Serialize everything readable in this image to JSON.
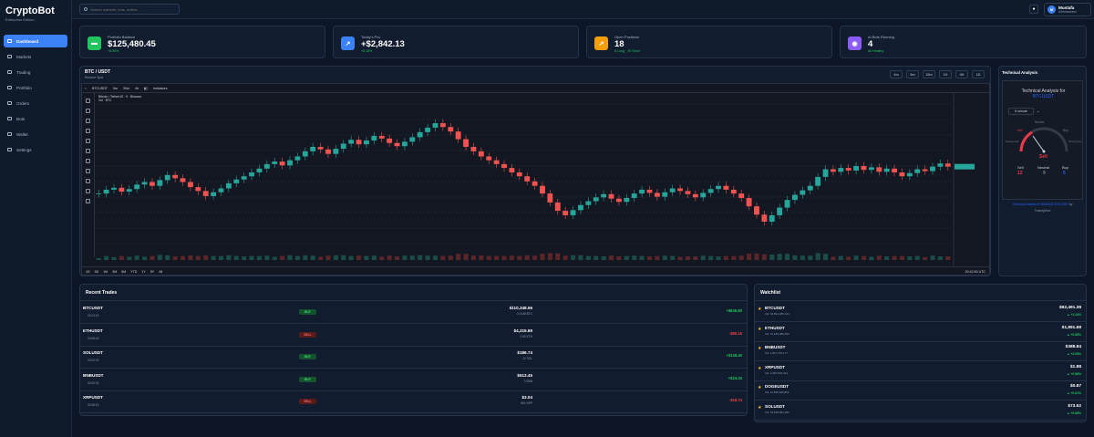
{
  "app": {
    "title": "CryptoBot",
    "subtitle": "Enterprise Edition"
  },
  "sidebar": {
    "items": [
      {
        "label": "Dashboard",
        "active": true
      },
      {
        "label": "Markets"
      },
      {
        "label": "Trading"
      },
      {
        "label": "Portfolio"
      },
      {
        "label": "Orders"
      },
      {
        "label": "Bots"
      },
      {
        "label": "Wallet"
      },
      {
        "label": "Settings"
      }
    ]
  },
  "topbar": {
    "search_placeholder": "Search markets, bots, orders...",
    "user_name": "Mustafa",
    "user_role": "Administrator",
    "avatar_initial": "M"
  },
  "stats": [
    {
      "label": "Portfolio Balance",
      "value": "$125,480.45",
      "sub": "+8.50%",
      "color": "#22c55e",
      "icon": "wallet-icon"
    },
    {
      "label": "Today's PnL",
      "value": "+$2,842.13",
      "sub": "+5.18%",
      "color": "#3b82f6",
      "icon": "chart-up-icon"
    },
    {
      "label": "Open Positions",
      "value": "18",
      "sub": "8 Long · 10 Short",
      "color": "#f59e0b",
      "icon": "positions-icon"
    },
    {
      "label": "AI Bots Running",
      "value": "4",
      "sub": "All Healthy",
      "color": "#8b5cf6",
      "icon": "robot-icon"
    }
  ],
  "chart_panel": {
    "pair": "BTC / USDT",
    "exchange": "Binance Spot",
    "timeframes": [
      "1m",
      "5m",
      "15m",
      "1H",
      "4H",
      "1D"
    ],
    "tv": {
      "symbol": "BTCUSDT",
      "intervals": [
        "5m",
        "30m",
        "4h"
      ],
      "indicators_label": "Indicators",
      "legend": "Bitcoin / TetherUS · 5 · Binance",
      "vol_label": "Vol · BTC",
      "ranges": [
        "1D",
        "5D",
        "1M",
        "3M",
        "6M",
        "YTD",
        "1Y",
        "5Y",
        "All"
      ],
      "time": "20:42:50 UTC"
    }
  },
  "chart_data": {
    "type": "candlestick",
    "title": "Bitcoin / TetherUS · 5 · Binance",
    "series": [
      {
        "name": "BTCUSDT",
        "close": [
          100.2,
          100.8,
          101.1,
          100.5,
          100.9,
          101.6,
          102.0,
          101.4,
          102.3,
          103.1,
          102.6,
          102.0,
          101.2,
          100.6,
          99.8,
          100.4,
          101.0,
          101.8,
          102.4,
          102.9,
          103.5,
          104.1,
          104.8,
          105.2,
          104.6,
          105.4,
          106.0,
          106.8,
          107.5,
          107.1,
          106.4,
          107.2,
          108.0,
          108.6,
          107.9,
          108.5,
          109.2,
          108.8,
          108.1,
          107.6,
          108.3,
          109.0,
          109.8,
          110.5,
          111.2,
          110.6,
          109.9,
          108.7,
          107.5,
          106.8,
          106.0,
          105.4,
          104.8,
          104.2,
          103.5,
          102.9,
          102.1,
          101.4,
          100.2,
          98.8,
          97.5,
          96.8,
          97.6,
          98.4,
          99.0,
          99.6,
          100.1,
          99.4,
          98.9,
          99.5,
          100.2,
          100.8,
          100.3,
          99.7,
          100.4,
          101.0,
          100.6,
          100.1,
          99.6,
          100.3,
          100.9,
          101.4,
          100.8,
          100.2,
          99.5,
          98.2,
          96.9,
          95.8,
          96.8,
          98.0,
          99.2,
          100.0,
          100.7,
          101.4,
          102.8,
          104.0,
          103.6,
          104.2,
          103.8,
          104.5,
          103.9,
          104.3,
          103.6,
          104.1,
          103.5,
          102.9,
          103.4,
          104.0,
          103.7,
          104.4,
          104.9,
          104.4
        ]
      }
    ]
  },
  "technical_analysis": {
    "panel_title": "Technical Analysis",
    "header_line1": "Technical Analysis for",
    "header_line2": "BTCUSDT",
    "interval": "5 minute",
    "gauge_left": "Sell",
    "gauge_right": "Buy",
    "gauge_neutral": "Neutral",
    "gauge_strong_sell": "Strong sell",
    "gauge_strong_buy": "Strong buy",
    "signal": "Sell",
    "counts": [
      {
        "label": "Sell",
        "value": "12"
      },
      {
        "label": "Neutral",
        "value": "9"
      },
      {
        "label": "Buy",
        "value": "5"
      }
    ],
    "footer": "Technical Analysis for BINANCE:BTCUSDT",
    "footer_by": "by",
    "footer_brand": "TradingView"
  },
  "recent_trades": {
    "title": "Recent Trades",
    "rows": [
      {
        "symbol": "BTCUSDT",
        "time": "20:23:15",
        "side": "BUY",
        "amount": "$110,348.56",
        "qty": "0.0148 BTC",
        "pnl": "+$845.80"
      },
      {
        "symbol": "ETHUSDT",
        "time": "20:08:42",
        "side": "SELL",
        "amount": "$4,315.89",
        "qty": "0.80 ETH",
        "pnl": "-$80.15"
      },
      {
        "symbol": "SOLUSDT",
        "time": "20:00:03",
        "side": "BUY",
        "amount": "$186.74",
        "qty": "12 SOL",
        "pnl": "+$148.40"
      },
      {
        "symbol": "BNBUSDT",
        "time": "20:40:02",
        "side": "BUY",
        "amount": "$613.45",
        "qty": "3 BNB",
        "pnl": "+$24.33"
      },
      {
        "symbol": "XRPUSDT",
        "time": "20:48:15",
        "side": "SELL",
        "amount": "$3.04",
        "qty": "850 XRP",
        "pnl": "-$18.74"
      }
    ]
  },
  "watchlist": {
    "title": "Watchlist",
    "rows": [
      {
        "symbol": "BTCUSDT",
        "vol": "Vol: 42,891,286,104",
        "price": "$62,491.38",
        "change": "▲ +1.24%",
        "up": true
      },
      {
        "symbol": "ETHUSDT",
        "vol": "Vol: 21,189,485,093",
        "price": "$1,891.68",
        "change": "▲ +0.85%",
        "up": true
      },
      {
        "symbol": "BNBUSDT",
        "vol": "Vol: 1,817,791,177",
        "price": "$388.84",
        "change": "▲ +2.08%",
        "up": true
      },
      {
        "symbol": "XRPUSDT",
        "vol": "Vol: 3,487,801,334",
        "price": "$1.88",
        "change": "▲ +0.86%",
        "up": true
      },
      {
        "symbol": "DOGEUSDT",
        "vol": "Vol: 11,595,290,852",
        "price": "$0.87",
        "change": "▲ +0.61%",
        "up": true
      },
      {
        "symbol": "SOLUSDT",
        "vol": "Vol: 53,818,961,483",
        "price": "$73.52",
        "change": "▲ +0.68%",
        "up": true
      }
    ]
  }
}
